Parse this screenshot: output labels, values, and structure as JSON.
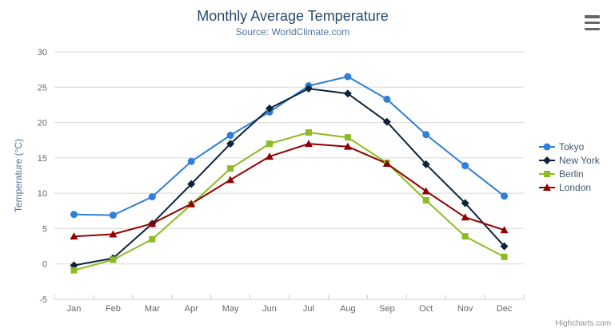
{
  "header": {
    "title": "Monthly Average Temperature",
    "subtitle": "Source: WorldClimate.com"
  },
  "menu": {
    "icon": "hamburger-icon"
  },
  "credits": {
    "label": "Highcharts.com"
  },
  "chart_data": {
    "type": "line",
    "title": "Monthly Average Temperature",
    "subtitle": "Source: WorldClimate.com",
    "categories": [
      "Jan",
      "Feb",
      "Mar",
      "Apr",
      "May",
      "Jun",
      "Jul",
      "Aug",
      "Sep",
      "Oct",
      "Nov",
      "Dec"
    ],
    "series": [
      {
        "name": "Tokyo",
        "marker": "circle",
        "color": "#2f7ed8",
        "values": [
          7.0,
          6.9,
          9.5,
          14.5,
          18.2,
          21.5,
          25.2,
          26.5,
          23.3,
          18.3,
          13.9,
          9.6
        ]
      },
      {
        "name": "New York",
        "marker": "diamond",
        "color": "#0d233a",
        "values": [
          -0.2,
          0.8,
          5.7,
          11.3,
          17.0,
          22.0,
          24.8,
          24.1,
          20.1,
          14.1,
          8.6,
          2.5
        ]
      },
      {
        "name": "Berlin",
        "marker": "square",
        "color": "#8bbc21",
        "values": [
          -0.9,
          0.6,
          3.5,
          8.4,
          13.5,
          17.0,
          18.6,
          17.9,
          14.3,
          9.0,
          3.9,
          1.0
        ]
      },
      {
        "name": "London",
        "marker": "triangle",
        "color": "#910000",
        "values": [
          3.9,
          4.2,
          5.7,
          8.5,
          11.9,
          15.2,
          17.0,
          16.6,
          14.2,
          10.3,
          6.6,
          4.8
        ]
      }
    ],
    "xlabel": "",
    "ylabel": "Temperature (°C)",
    "ylim": [
      -5,
      30
    ],
    "ytick_step": 5,
    "grid": true,
    "legend_position": "right"
  },
  "colors": {
    "title": "#274b6d",
    "subtitle": "#4d759e",
    "gridline": "#d8d8d8",
    "axis_line": "#c0d0e0",
    "axis_label": "#666666",
    "axis_title": "#4d759e",
    "legend_text": "#3e576f",
    "credits": "#909090",
    "hamburger": "#666666"
  }
}
